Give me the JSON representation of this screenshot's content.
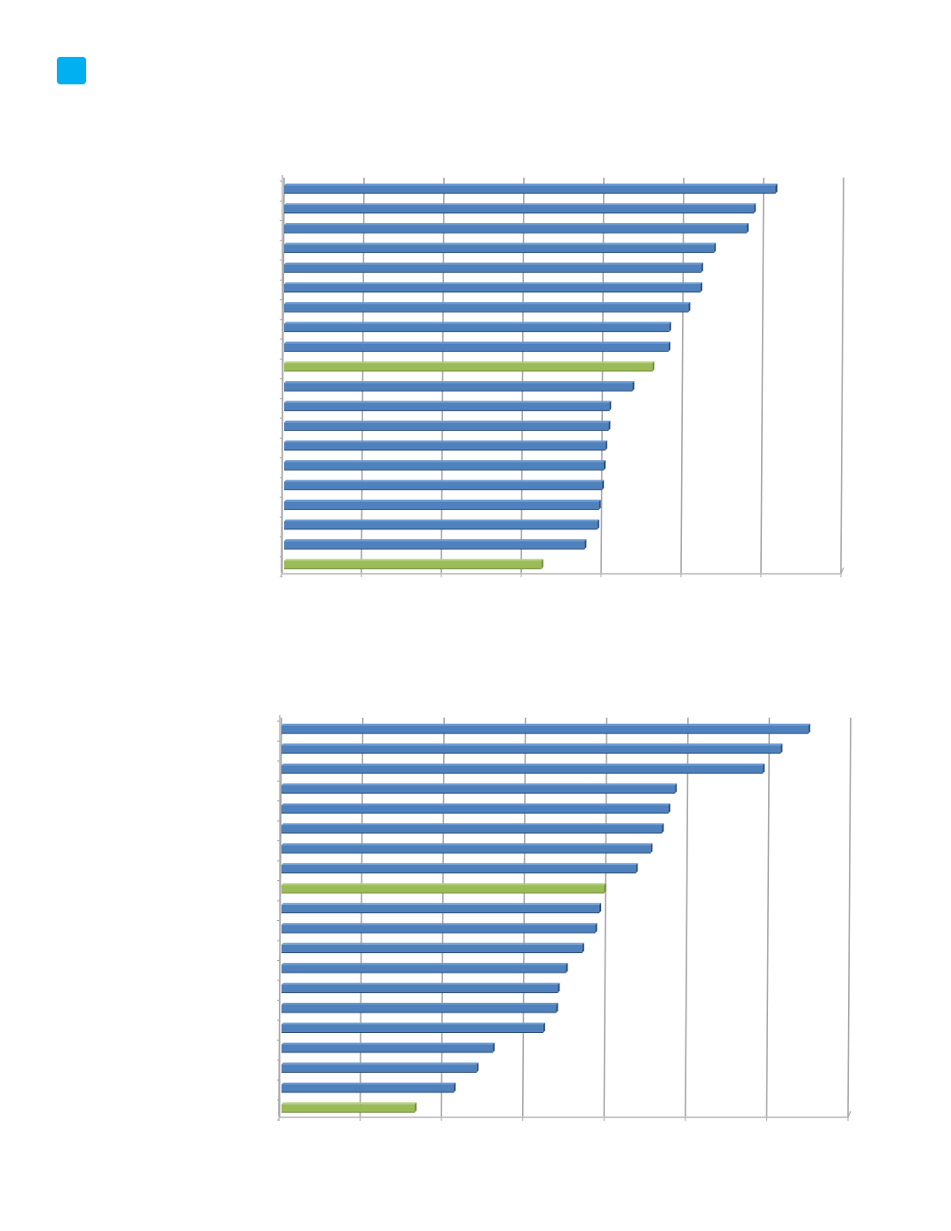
{
  "page": {
    "marker_color": "#00b0f0"
  },
  "colors": {
    "bar_blue": "#4f81bd",
    "bar_blue_top": "#6d9bd3",
    "bar_blue_side": "#2c4d75",
    "bar_green": "#9bbb59",
    "bar_green_top": "#b3cf7a",
    "bar_green_side": "#6f8a3a",
    "gridline": "#a6a6a6",
    "axis": "#a6a6a6"
  },
  "chart_data": [
    {
      "type": "bar",
      "orientation": "horizontal",
      "title": "",
      "xlabel": "",
      "ylabel": "",
      "xlim": [
        0,
        7
      ],
      "grid": true,
      "legend": "none",
      "values": [
        6.15,
        5.88,
        5.79,
        5.38,
        5.22,
        5.21,
        5.06,
        4.82,
        4.81,
        4.61,
        4.36,
        4.07,
        4.06,
        4.02,
        4.0,
        3.98,
        3.94,
        3.92,
        3.76,
        3.22
      ],
      "highlighted": [
        9,
        19
      ]
    },
    {
      "type": "bar",
      "orientation": "horizontal",
      "title": "",
      "xlabel": "",
      "ylabel": "",
      "xlim": [
        0,
        7
      ],
      "grid": true,
      "legend": "none",
      "values": [
        6.48,
        6.14,
        5.92,
        4.84,
        4.76,
        4.68,
        4.54,
        4.36,
        3.97,
        3.91,
        3.86,
        3.7,
        3.5,
        3.4,
        3.38,
        3.22,
        2.6,
        2.4,
        2.12,
        1.64
      ],
      "highlighted": [
        8,
        19
      ]
    }
  ]
}
